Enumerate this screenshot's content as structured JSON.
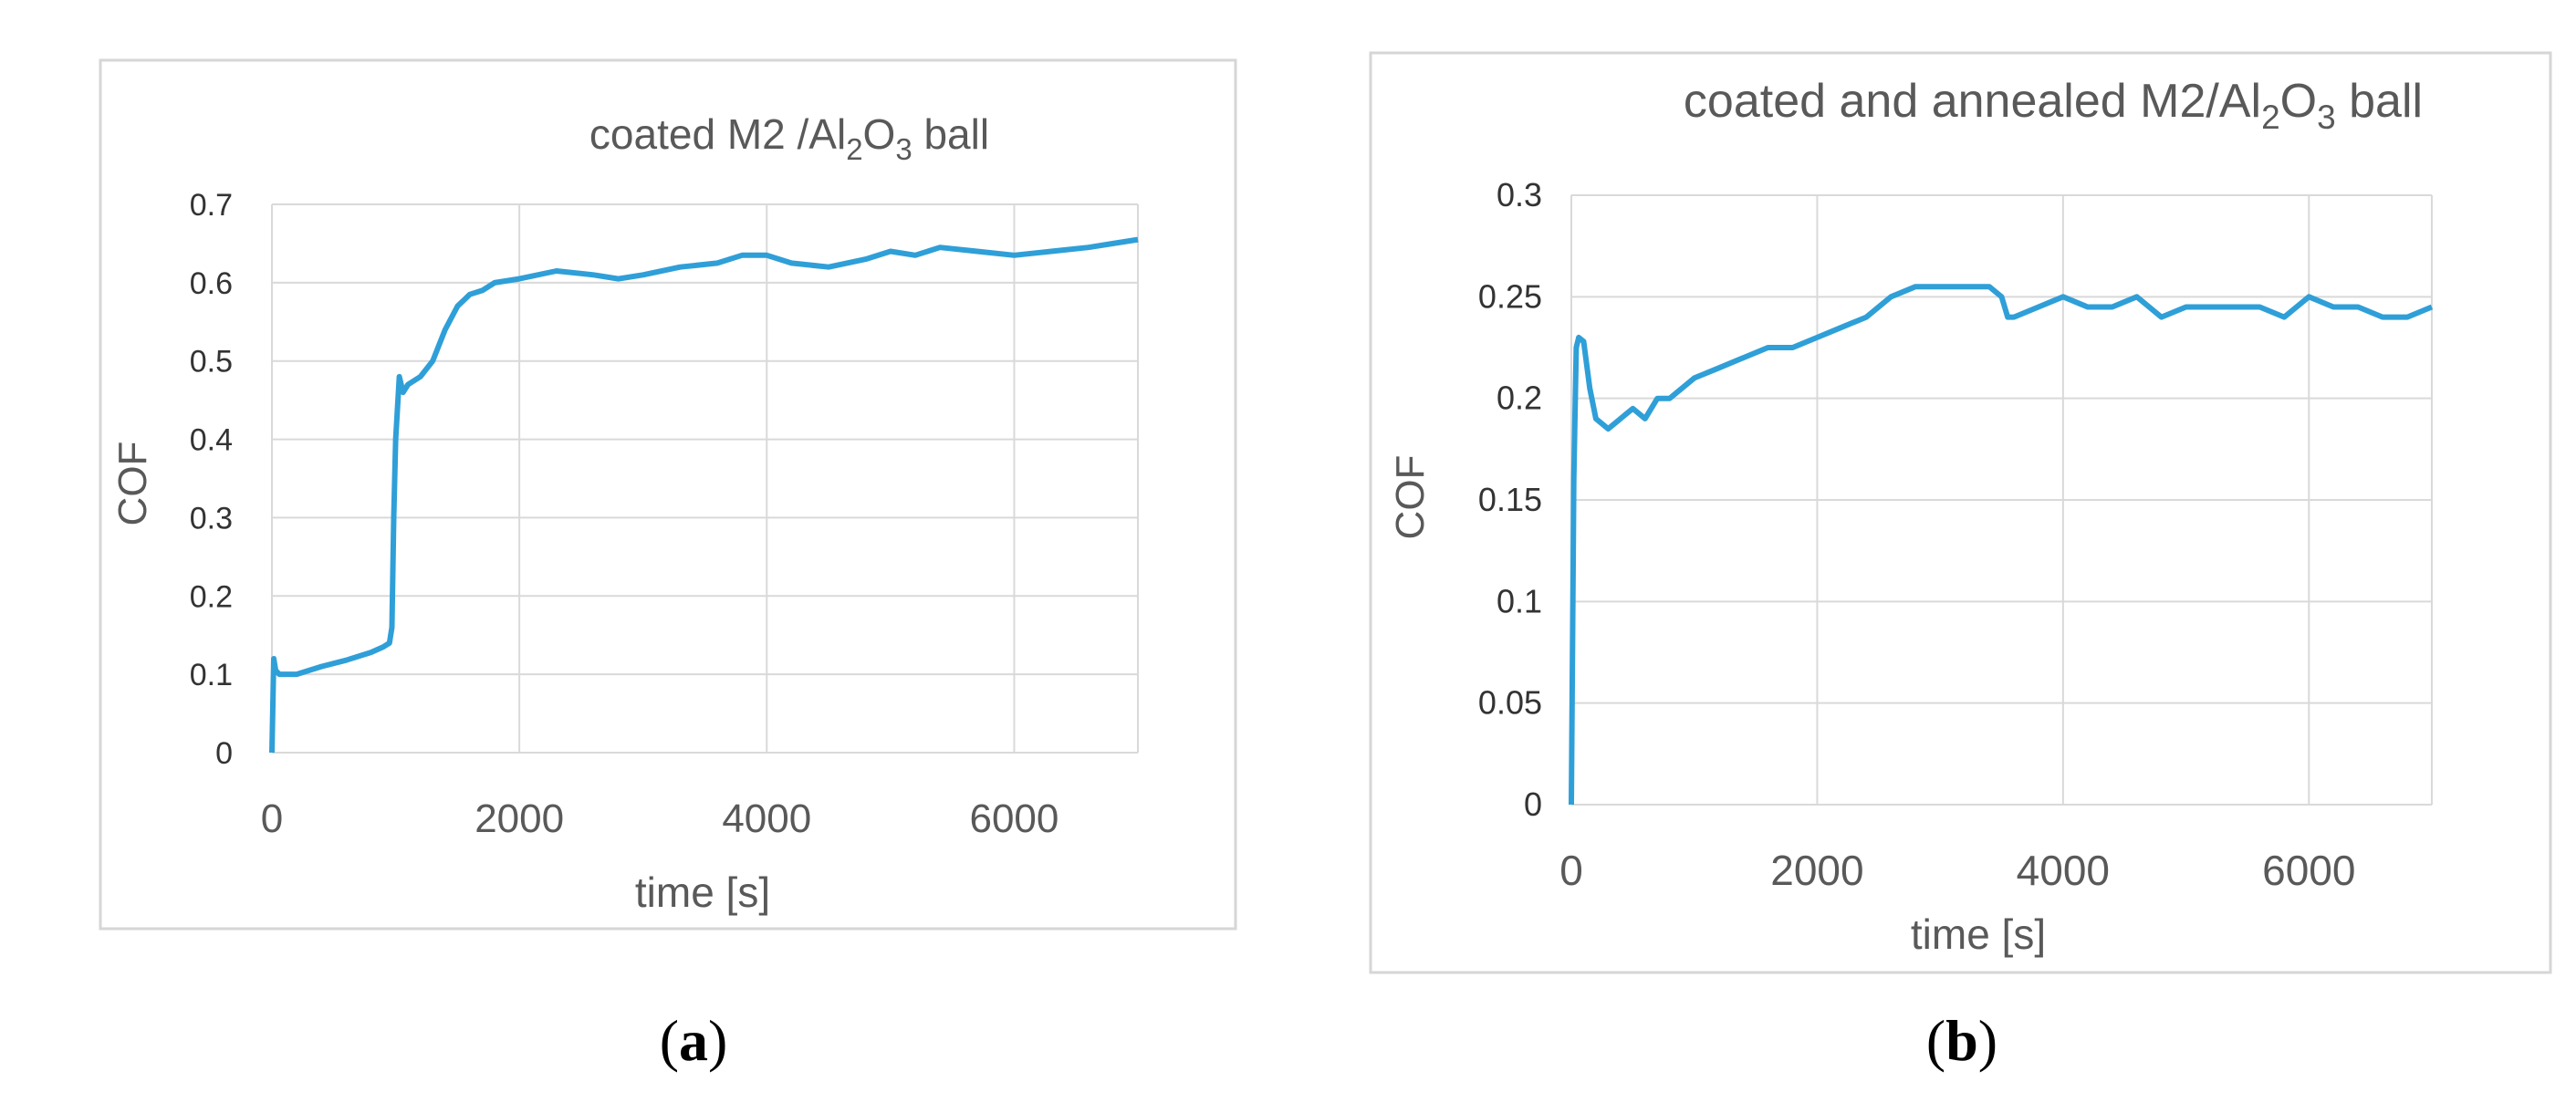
{
  "chart_data": [
    {
      "type": "line",
      "title_parts": {
        "pre": "coated M2 /Al",
        "sub1": "2",
        "mid": "O",
        "sub2": "3",
        "post": " ball"
      },
      "xlabel": "time [s]",
      "ylabel": "COF",
      "xlim": [
        0,
        7000
      ],
      "ylim": [
        0,
        0.7
      ],
      "xticks": [
        0,
        2000,
        4000,
        6000
      ],
      "xtick_labels": [
        "0",
        "2000",
        "4000",
        "6000"
      ],
      "yticks": [
        0,
        0.1,
        0.2,
        0.3,
        0.4,
        0.5,
        0.6,
        0.7
      ],
      "ytick_labels": [
        "0",
        "0.1",
        "0.2",
        "0.3",
        "0.4",
        "0.5",
        "0.6",
        "0.7"
      ],
      "grid": true,
      "line_color": "#2f9fd8",
      "panel_label": {
        "open": "(",
        "letter": "a",
        "close": ")"
      },
      "series": [
        {
          "name": "COF",
          "x": [
            0,
            15,
            30,
            60,
            120,
            200,
            400,
            600,
            800,
            900,
            950,
            970,
            985,
            1000,
            1030,
            1060,
            1100,
            1200,
            1300,
            1400,
            1500,
            1600,
            1700,
            1800,
            2000,
            2300,
            2600,
            2800,
            3000,
            3300,
            3600,
            3800,
            4000,
            4200,
            4500,
            4800,
            5000,
            5200,
            5400,
            5700,
            6000,
            6300,
            6600,
            6800,
            7000
          ],
          "y": [
            0.0,
            0.12,
            0.105,
            0.1,
            0.1,
            0.1,
            0.11,
            0.118,
            0.128,
            0.135,
            0.14,
            0.16,
            0.3,
            0.4,
            0.48,
            0.46,
            0.47,
            0.48,
            0.5,
            0.54,
            0.57,
            0.585,
            0.59,
            0.6,
            0.605,
            0.615,
            0.61,
            0.605,
            0.61,
            0.62,
            0.625,
            0.635,
            0.635,
            0.625,
            0.62,
            0.63,
            0.64,
            0.635,
            0.645,
            0.64,
            0.635,
            0.64,
            0.645,
            0.65,
            0.655
          ]
        }
      ]
    },
    {
      "type": "line",
      "title_parts": {
        "pre": "coated and annealed  M2/Al",
        "sub1": "2",
        "mid": "O",
        "sub2": "3",
        "post": " ball"
      },
      "xlabel": "time [s]",
      "ylabel": "COF",
      "xlim": [
        0,
        7000
      ],
      "ylim": [
        0,
        0.3
      ],
      "xticks": [
        0,
        2000,
        4000,
        6000
      ],
      "xtick_labels": [
        "0",
        "2000",
        "4000",
        "6000"
      ],
      "yticks": [
        0,
        0.05,
        0.1,
        0.15,
        0.2,
        0.25,
        0.3
      ],
      "ytick_labels": [
        "0",
        "0.05",
        "0.1",
        "0.15",
        "0.2",
        "0.25",
        "0.3"
      ],
      "grid": true,
      "line_color": "#2f9fd8",
      "panel_label": {
        "open": "(",
        "letter": "b",
        "close": ")"
      },
      "series": [
        {
          "name": "COF",
          "x": [
            0,
            20,
            40,
            60,
            100,
            150,
            200,
            300,
            400,
            500,
            600,
            700,
            800,
            1000,
            1200,
            1400,
            1600,
            1800,
            2000,
            2200,
            2400,
            2600,
            2800,
            3000,
            3200,
            3400,
            3500,
            3550,
            3600,
            3800,
            4000,
            4200,
            4400,
            4600,
            4800,
            5000,
            5200,
            5400,
            5600,
            5800,
            6000,
            6200,
            6400,
            6600,
            6800,
            7000
          ],
          "y": [
            0.0,
            0.16,
            0.225,
            0.23,
            0.228,
            0.205,
            0.19,
            0.185,
            0.19,
            0.195,
            0.19,
            0.2,
            0.2,
            0.21,
            0.215,
            0.22,
            0.225,
            0.225,
            0.23,
            0.235,
            0.24,
            0.25,
            0.255,
            0.255,
            0.255,
            0.255,
            0.25,
            0.24,
            0.24,
            0.245,
            0.25,
            0.245,
            0.245,
            0.25,
            0.24,
            0.245,
            0.245,
            0.245,
            0.245,
            0.24,
            0.25,
            0.245,
            0.245,
            0.24,
            0.24,
            0.245
          ]
        }
      ]
    }
  ]
}
